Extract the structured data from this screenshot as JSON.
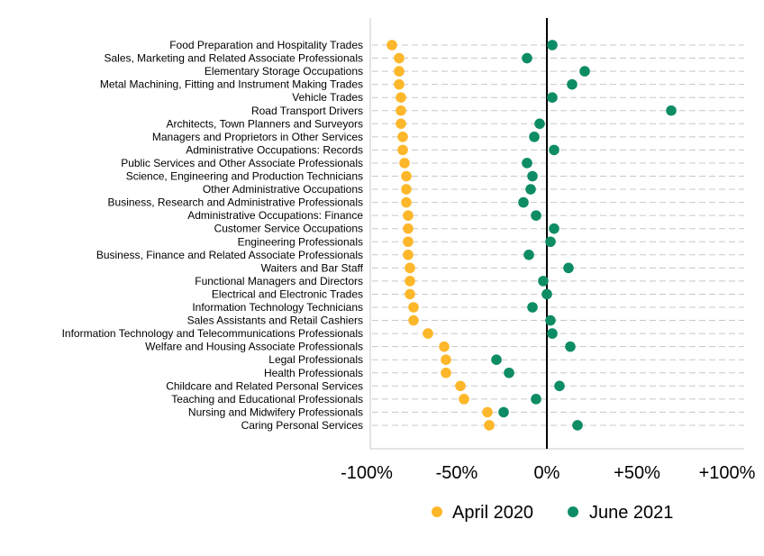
{
  "chart_data": {
    "type": "scatter",
    "title": "",
    "xlabel": "",
    "ylabel": "",
    "xlim": [
      -100,
      110
    ],
    "x_ticks": [
      -100,
      -50,
      0,
      50,
      100
    ],
    "x_tick_labels": [
      "-100%",
      "-50%",
      "0%",
      "+50%",
      "+100%"
    ],
    "grid": "horizontal dashed",
    "legend_position": "bottom",
    "categories": [
      "Food Preparation and Hospitality Trades",
      "Sales, Marketing and Related Associate Professionals",
      "Elementary Storage Occupations",
      "Metal Machining, Fitting and Instrument Making Trades",
      "Vehicle Trades",
      "Road Transport Drivers",
      "Architects, Town Planners and Surveyors",
      "Managers and Proprietors in Other Services",
      "Administrative Occupations: Records",
      "Public Services and Other Associate Professionals",
      "Science, Engineering and Production Technicians",
      "Other Administrative Occupations",
      "Business, Research and Administrative Professionals",
      "Administrative Occupations: Finance",
      "Customer Service Occupations",
      "Engineering Professionals",
      "Business, Finance and Related Associate Professionals",
      "Waiters and Bar Staff",
      "Functional Managers and Directors",
      "Electrical and Electronic Trades",
      "Information Technology Technicians",
      "Sales Assistants and Retail Cashiers",
      "Information Technology and Telecommunications Professionals",
      "Welfare and Housing Associate Professionals",
      "Legal Professionals",
      "Health Professionals",
      "Childcare and Related Personal Services",
      "Teaching and Educational Professionals",
      "Nursing and Midwifery Professionals",
      "Caring Personal Services"
    ],
    "series": [
      {
        "name": "April 2020",
        "color": "#FDB72A",
        "values": [
          -86,
          -82,
          -82,
          -82,
          -81,
          -81,
          -81,
          -80,
          -80,
          -79,
          -78,
          -78,
          -78,
          -77,
          -77,
          -77,
          -77,
          -76,
          -76,
          -76,
          -74,
          -74,
          -66,
          -57,
          -56,
          -56,
          -48,
          -46,
          -33,
          -32
        ]
      },
      {
        "name": "June 2021",
        "color": "#0E8C66",
        "values": [
          3,
          -11,
          21,
          14,
          3,
          69,
          -4,
          -7,
          4,
          -11,
          -8,
          -9,
          -13,
          -6,
          4,
          2,
          -10,
          12,
          -2,
          0,
          -8,
          2,
          3,
          13,
          -28,
          -21,
          7,
          -6,
          -24,
          17
        ]
      }
    ]
  }
}
